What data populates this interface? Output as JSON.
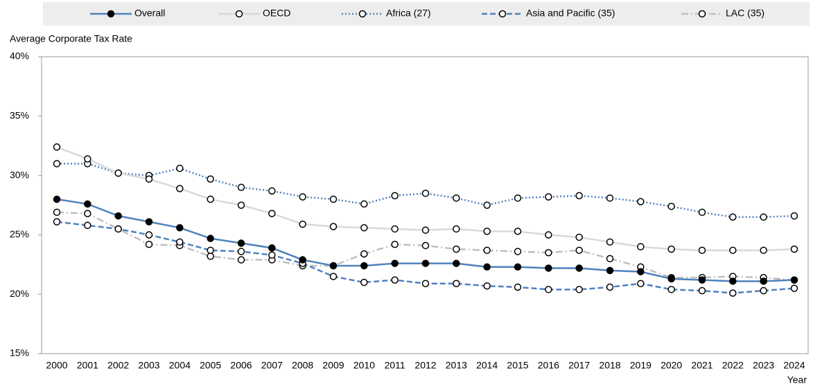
{
  "chart_data": {
    "type": "line",
    "y_label": "Average Corporate Tax Rate",
    "x_label": "Year",
    "categories": [
      "2000",
      "2001",
      "2002",
      "2003",
      "2004",
      "2005",
      "2006",
      "2007",
      "2008",
      "2009",
      "2010",
      "2011",
      "2012",
      "2013",
      "2014",
      "2015",
      "2016",
      "2017",
      "2018",
      "2019",
      "2020",
      "2021",
      "2022",
      "2023",
      "2024"
    ],
    "ylim": [
      15,
      40
    ],
    "yticks": [
      {
        "value": 15,
        "label": "15%"
      },
      {
        "value": 20,
        "label": "20%"
      },
      {
        "value": 25,
        "label": "25%"
      },
      {
        "value": 30,
        "label": "30%"
      },
      {
        "value": 35,
        "label": "35%"
      },
      {
        "value": 40,
        "label": "40%"
      }
    ],
    "grid": false,
    "legend": "top",
    "series": [
      {
        "name": "Overall",
        "color": "#4f81bd",
        "line_style": "solid",
        "marker_fill": "#000000",
        "values": [
          28.0,
          27.6,
          26.6,
          26.1,
          25.6,
          24.7,
          24.3,
          23.9,
          22.9,
          22.4,
          22.4,
          22.6,
          22.6,
          22.6,
          22.3,
          22.3,
          22.2,
          22.2,
          22.0,
          21.9,
          21.3,
          21.2,
          21.1,
          21.1,
          21.2
        ]
      },
      {
        "name": "OECD",
        "color": "#d9d9d9",
        "line_style": "solid",
        "marker_fill": "#ffffff",
        "values": [
          32.4,
          31.4,
          30.2,
          29.7,
          28.9,
          28.0,
          27.5,
          26.8,
          25.9,
          25.7,
          25.6,
          25.5,
          25.4,
          25.5,
          25.3,
          25.3,
          25.0,
          24.8,
          24.4,
          24.0,
          23.8,
          23.7,
          23.7,
          23.7,
          23.8
        ]
      },
      {
        "name": "Africa (27)",
        "color": "#4f81bd",
        "line_style": "dotted",
        "marker_fill": "#ffffff",
        "values": [
          31.0,
          31.0,
          30.2,
          30.0,
          30.6,
          29.7,
          29.0,
          28.7,
          28.2,
          28.0,
          27.6,
          28.3,
          28.5,
          28.1,
          27.5,
          28.1,
          28.2,
          28.3,
          28.1,
          27.8,
          27.4,
          26.9,
          26.5,
          26.5,
          26.6
        ]
      },
      {
        "name": "Asia and Pacific (35)",
        "color": "#4f81bd",
        "line_style": "dashed",
        "marker_fill": "#ffffff",
        "values": [
          26.1,
          25.8,
          25.5,
          25.0,
          24.4,
          23.7,
          23.6,
          23.3,
          22.6,
          21.5,
          21.0,
          21.2,
          20.9,
          20.9,
          20.7,
          20.6,
          20.4,
          20.4,
          20.6,
          20.9,
          20.4,
          20.3,
          20.1,
          20.3,
          20.5
        ]
      },
      {
        "name": "LAC (35)",
        "color": "#bfbfbf",
        "line_style": "dashdot",
        "marker_fill": "#ffffff",
        "values": [
          26.9,
          26.8,
          25.5,
          24.2,
          24.1,
          23.2,
          22.9,
          22.9,
          22.4,
          22.4,
          23.4,
          24.2,
          24.1,
          23.8,
          23.7,
          23.6,
          23.5,
          23.7,
          23.0,
          22.3,
          21.4,
          21.4,
          21.5,
          21.4,
          21.2
        ]
      }
    ]
  }
}
